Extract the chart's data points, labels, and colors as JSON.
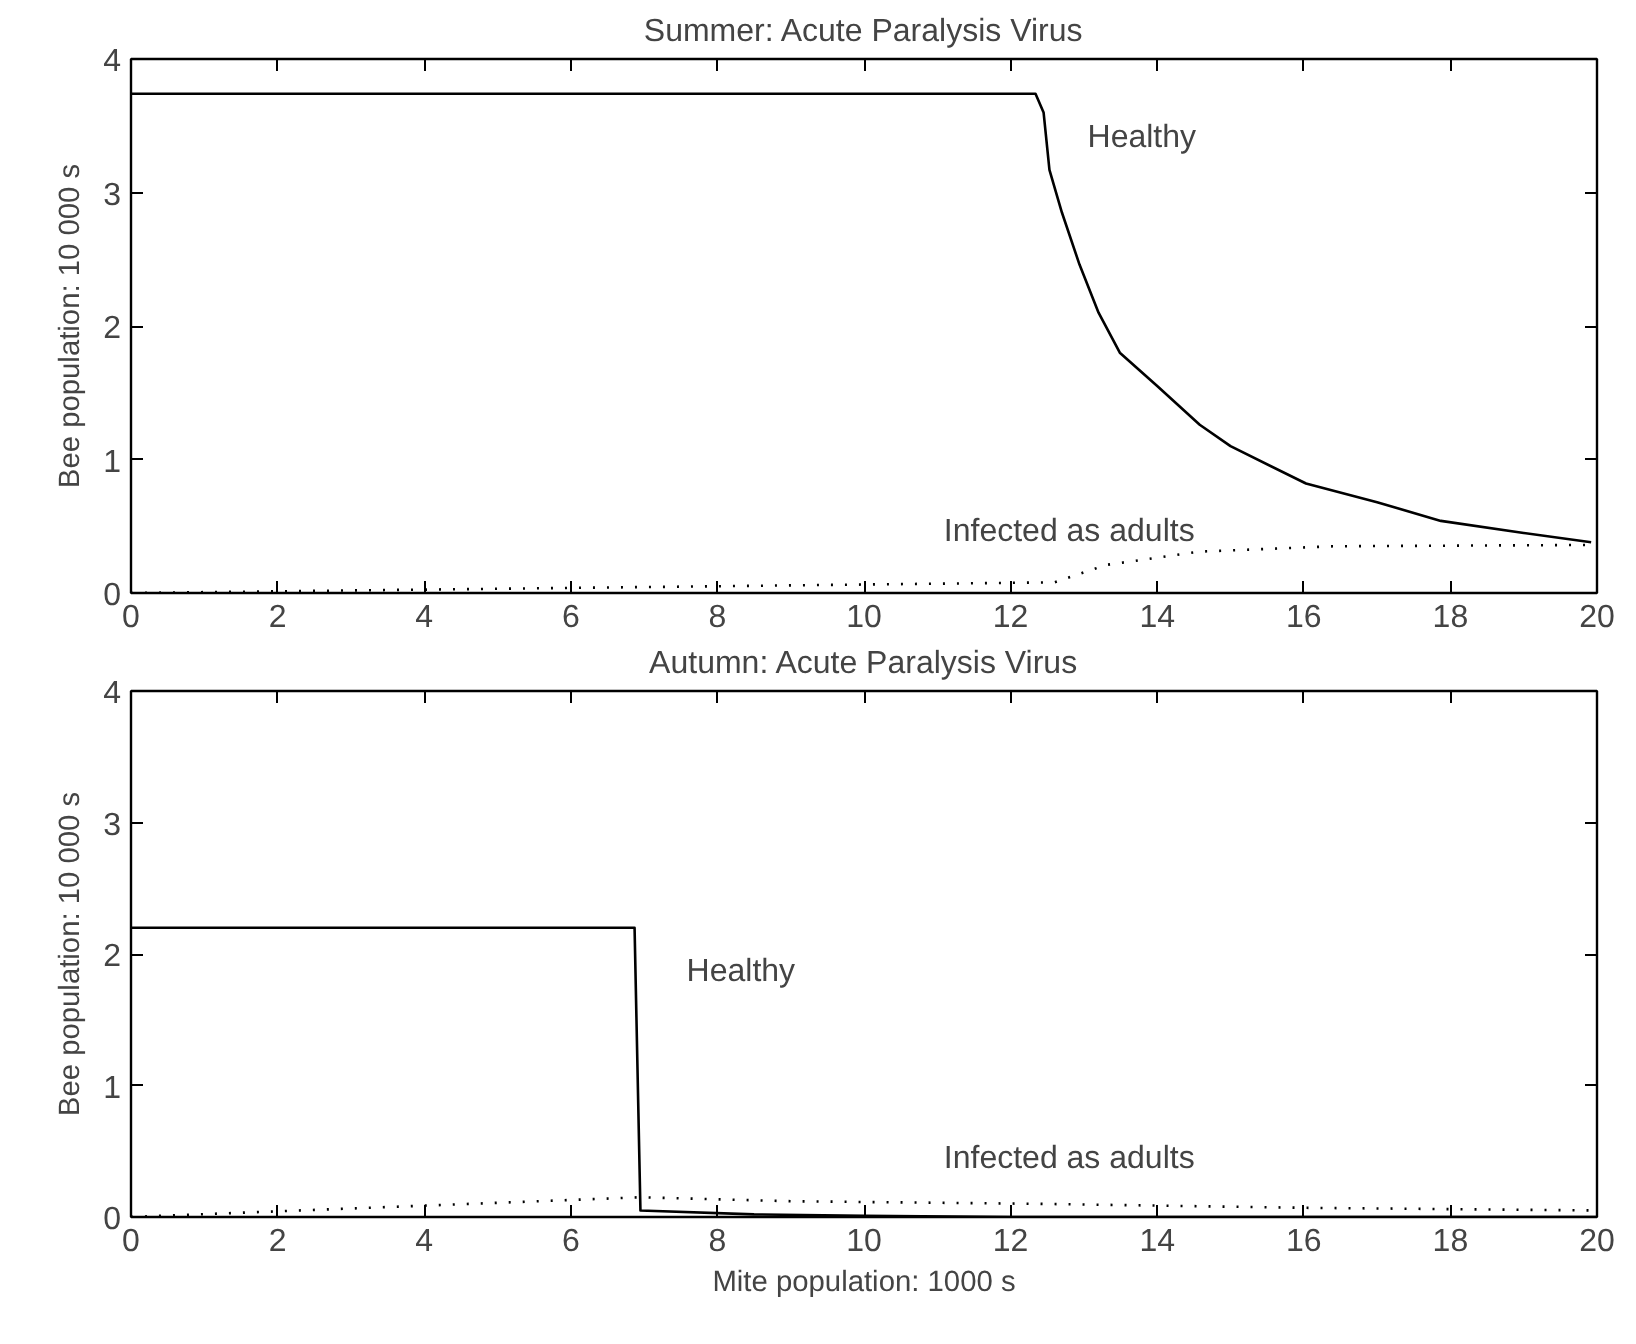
{
  "chart_data": [
    {
      "type": "line",
      "title": "Summer: Acute Paralysis Virus",
      "ylabel": "Bee population: 10 000 s",
      "xlim": [
        0,
        20
      ],
      "ylim": [
        0,
        4
      ],
      "xticks": [
        0,
        2,
        4,
        6,
        8,
        10,
        12,
        14,
        16,
        18,
        20
      ],
      "yticks": [
        0,
        1,
        2,
        3,
        4
      ],
      "grid": false,
      "marker": "none",
      "series": [
        {
          "name": "Healthy",
          "color": "#000000",
          "line_style": "solid",
          "x": [
            0,
            12.34,
            12.45,
            12.53,
            12.7,
            12.94,
            13.2,
            13.49,
            14,
            14.58,
            15,
            16.03,
            17,
            17.87,
            19,
            19.92
          ],
          "values": [
            3.74,
            3.74,
            3.6,
            3.17,
            2.85,
            2.46,
            2.1,
            1.8,
            1.55,
            1.26,
            1.1,
            0.82,
            0.68,
            0.54,
            0.45,
            0.38
          ]
        },
        {
          "name": "Infected as adults",
          "color": "#000000",
          "line_style": "dotted",
          "x": [
            0,
            12.6,
            13.3,
            14.58,
            16.4,
            19.92
          ],
          "values": [
            0,
            0.08,
            0.21,
            0.31,
            0.35,
            0.36
          ]
        }
      ]
    },
    {
      "type": "line",
      "title": "Autumn: Acute Paralysis Virus",
      "xlabel": "Mite population: 1000 s",
      "ylabel": "Bee population: 10 000 s",
      "xlim": [
        0,
        20
      ],
      "ylim": [
        0,
        4
      ],
      "xticks": [
        0,
        2,
        4,
        6,
        8,
        10,
        12,
        14,
        16,
        18,
        20
      ],
      "yticks": [
        0,
        1,
        2,
        3,
        4
      ],
      "grid": false,
      "marker": "none",
      "series": [
        {
          "name": "Healthy",
          "color": "#000000",
          "line_style": "solid",
          "x": [
            0,
            6.87,
            6.95,
            8.5,
            10,
            12,
            20
          ],
          "values": [
            2.2,
            2.2,
            0.05,
            0.02,
            0.01,
            0,
            0
          ]
        },
        {
          "name": "Infected as adults",
          "color": "#000000",
          "line_style": "dotted",
          "x": [
            0,
            6.95,
            9,
            12.4,
            16,
            20
          ],
          "values": [
            0,
            0.15,
            0.12,
            0.1,
            0.07,
            0.05
          ]
        }
      ]
    }
  ]
}
